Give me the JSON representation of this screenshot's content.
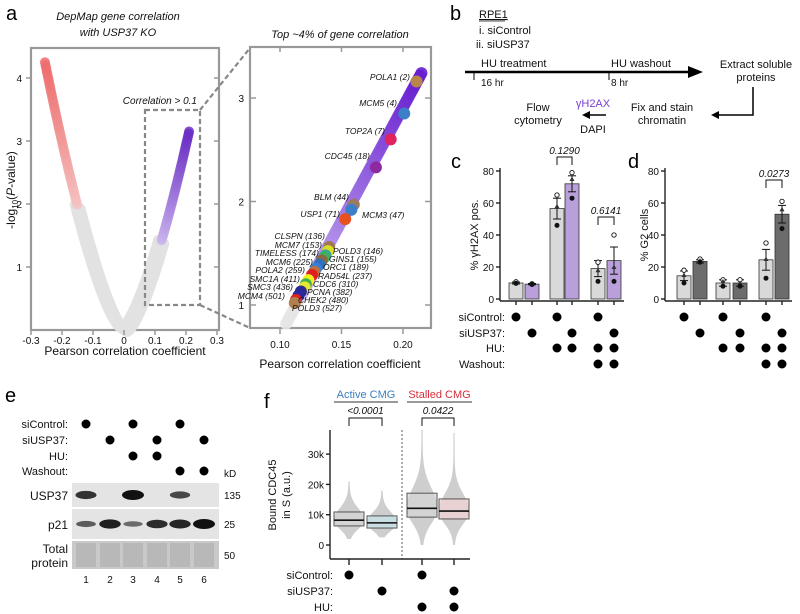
{
  "panel_letters": {
    "a": "a",
    "b": "b",
    "c": "c",
    "d": "d",
    "e": "e",
    "f": "f"
  },
  "colors": {
    "red": "#ee6d6d",
    "purple": "#6b2fc4",
    "gray": "#e2e2e2",
    "bar_light": "#d9d9d9",
    "bar_purple": "#b9a0da",
    "bar_dark": "#6c6c6c",
    "active": "#3d7fc0",
    "stalled": "#d52f3b",
    "dapi_purple": "#7a3fd0"
  },
  "chart_data": [
    {
      "id": "a-volcano",
      "type": "scatter",
      "title_line1": "DepMap gene correlation",
      "title_line2": "with USP37 KO",
      "xlabel": "Pearson correlation coefficient",
      "ylabel_pre": "-log",
      "ylabel_sub": "10",
      "ylabel_open": "(",
      "ylabel_p": "P",
      "ylabel_post": "-value)",
      "xlim": [
        -0.3,
        0.3
      ],
      "ylim": [
        0,
        4.5
      ],
      "xticks": [
        "-0.3",
        "-0.2",
        "-0.1",
        "0",
        "0.1",
        "0.2",
        "0.3"
      ],
      "xtick_values": [
        -0.3,
        -0.2,
        -0.1,
        0,
        0.1,
        0.2,
        0.3
      ],
      "yticks": [
        "1",
        "2",
        "3",
        "4"
      ],
      "ytick_values": [
        1,
        2,
        3,
        4
      ],
      "annotation": "Correlation > 0.1",
      "left_branch": {
        "x_extreme": -0.255,
        "y_max": 4.25,
        "color_threshold": -0.15
      },
      "right_branch": {
        "x_extreme": 0.21,
        "y_max": 3.15,
        "color_threshold": 0.12
      }
    },
    {
      "id": "a-zoom",
      "type": "scatter",
      "title": "Top ~4% of gene correlation",
      "xlabel": "Pearson correlation coefficient",
      "xlim": [
        0.08,
        0.22
      ],
      "ylim": [
        0.8,
        3.5
      ],
      "xticks": [
        "0.10",
        "0.15",
        "0.20"
      ],
      "xtick_values": [
        0.1,
        0.15,
        0.2
      ],
      "yticks": [
        "1",
        "2",
        "3"
      ],
      "ytick_values": [
        1,
        2,
        3
      ],
      "genes": [
        {
          "label": "POLA1 (2)",
          "x": 0.211,
          "y": 3.16,
          "color": "#b8864b"
        },
        {
          "label": "MCM5 (4)",
          "x": 0.201,
          "y": 2.85,
          "color": "#3a7fc8"
        },
        {
          "label": "TOP2A (7)",
          "x": 0.19,
          "y": 2.6,
          "color": "#e0245e"
        },
        {
          "label": "CDC45 (18)",
          "x": 0.178,
          "y": 2.33,
          "color": "#8e2aa0"
        },
        {
          "label": "BLM (44)",
          "x": 0.16,
          "y": 1.97,
          "color": "#9b7b60"
        },
        {
          "label": "MCM3 (47)",
          "x": 0.158,
          "y": 1.92,
          "color": "#3a7fc8"
        },
        {
          "label": "USP1 (71)",
          "x": 0.153,
          "y": 1.83,
          "color": "#e8501e"
        },
        {
          "label": "CLSPN (136)",
          "x": 0.14,
          "y": 1.56,
          "color": "#a07850"
        },
        {
          "label": "POLD3 (146)",
          "x": 0.139,
          "y": 1.52,
          "color": "#d8e020"
        },
        {
          "label": "MCM7 (153)",
          "x": 0.137,
          "y": 1.48,
          "color": "#3aa0a0"
        },
        {
          "label": "GINS1 (155)",
          "x": 0.136,
          "y": 1.46,
          "color": "#40b060"
        },
        {
          "label": "TIMELESS (174)",
          "x": 0.134,
          "y": 1.43,
          "color": "#8a6a40"
        },
        {
          "label": "ORC1 (189)",
          "x": 0.132,
          "y": 1.39,
          "color": "#3070c0"
        },
        {
          "label": "MCM6 (225)",
          "x": 0.129,
          "y": 1.35,
          "color": "#3a80d0"
        },
        {
          "label": "RAD54L (237)",
          "x": 0.128,
          "y": 1.32,
          "color": "#c07040"
        },
        {
          "label": "POLA2 (259)",
          "x": 0.126,
          "y": 1.29,
          "color": "#e02020"
        },
        {
          "label": "CDC6 (310)",
          "x": 0.123,
          "y": 1.24,
          "color": "#f0f020"
        },
        {
          "label": "PCNA (382)",
          "x": 0.121,
          "y": 1.2,
          "color": "#40b050"
        },
        {
          "label": "SMC1A (411)",
          "x": 0.12,
          "y": 1.17,
          "color": "#e8e830"
        },
        {
          "label": "SMC3 (436)",
          "x": 0.117,
          "y": 1.13,
          "color": "#2a2a90"
        },
        {
          "label": "CHEK2 (480)",
          "x": 0.115,
          "y": 1.09,
          "color": "#2a2aa0"
        },
        {
          "label": "MCM4 (501)",
          "x": 0.113,
          "y": 1.05,
          "color": "#e02020"
        },
        {
          "label": "POLD3 (527)",
          "x": 0.112,
          "y": 1.02,
          "color": "#b08050"
        }
      ]
    },
    {
      "id": "c",
      "type": "bar",
      "ylabel": "% γH2AX pos.",
      "ylim": [
        0,
        80
      ],
      "yticks": [
        "0",
        "20",
        "40",
        "60",
        "80"
      ],
      "ytick_values": [
        0,
        20,
        40,
        60,
        80
      ],
      "values": [
        10,
        9.3,
        56.5,
        72,
        19,
        24
      ],
      "errors": [
        0.6,
        0.4,
        6.5,
        5,
        5,
        8.5
      ],
      "replicates": [
        [
          10.8,
          10.2,
          9.8
        ],
        [
          9.5,
          9.3,
          9.1
        ],
        [
          65,
          58,
          46
        ],
        [
          79,
          75,
          63
        ],
        [
          23,
          18,
          11
        ],
        [
          40,
          20,
          11
        ]
      ],
      "bar_colors": [
        "#d9d9d9",
        "#b9a0da",
        "#d9d9d9",
        "#b9a0da",
        "#d9d9d9",
        "#b9a0da"
      ],
      "comparisons": [
        {
          "bars": [
            2,
            3
          ],
          "p": "0.1290"
        },
        {
          "bars": [
            4,
            5
          ],
          "p": "0.6141"
        }
      ]
    },
    {
      "id": "d",
      "type": "bar",
      "ylabel": "% G2 cells",
      "ylim": [
        0,
        80
      ],
      "yticks": [
        "0",
        "20",
        "40",
        "60",
        "80"
      ],
      "ytick_values": [
        0,
        20,
        40,
        60,
        80
      ],
      "values": [
        14.5,
        23.5,
        10,
        10,
        24.5,
        53
      ],
      "errors": [
        3,
        1,
        2,
        2,
        6.5,
        5.5
      ],
      "replicates": [
        [
          18,
          15,
          10
        ],
        [
          25,
          24,
          23
        ],
        [
          12,
          11,
          8
        ],
        [
          12,
          10,
          8
        ],
        [
          35,
          25,
          13
        ],
        [
          61,
          56,
          44
        ]
      ],
      "bar_colors": [
        "#d9d9d9",
        "#6c6c6c",
        "#d9d9d9",
        "#6c6c6c",
        "#d9d9d9",
        "#6c6c6c"
      ],
      "comparisons": [
        {
          "bars": [
            4,
            5
          ],
          "p": "0.0273"
        }
      ]
    },
    {
      "id": "f",
      "type": "box",
      "ylabel_line1": "Bound CDC45",
      "ylabel_line2": "in S (a.u.)",
      "yticks": [
        "0",
        "10k",
        "20k",
        "30k"
      ],
      "ytick_values": [
        0,
        10000,
        20000,
        30000
      ],
      "groups": [
        {
          "header": "Active CMG",
          "p": "<0.0001",
          "boxes": [
            0,
            1
          ]
        },
        {
          "header": "Stalled CMG",
          "p": "0.0422",
          "boxes": [
            2,
            3
          ]
        }
      ],
      "boxes": [
        {
          "q1": 6300,
          "median": 8200,
          "q3": 10900,
          "min": 2000,
          "max": 21000,
          "fill": "#d6d6d6"
        },
        {
          "q1": 5600,
          "median": 7300,
          "q3": 9600,
          "min": 2500,
          "max": 18000,
          "fill": "#c4e6ee"
        },
        {
          "q1": 9200,
          "median": 12100,
          "q3": 17100,
          "min": 0,
          "max": 38000,
          "fill": "#d6d6d6"
        },
        {
          "q1": 8600,
          "median": 11200,
          "q3": 15200,
          "min": 0,
          "max": 37000,
          "fill": "#f6d2d4"
        }
      ],
      "condition_rows": [
        {
          "label": "siControl:",
          "on": [
            1,
            0,
            1,
            0
          ]
        },
        {
          "label": "siUSP37:",
          "on": [
            0,
            1,
            0,
            1
          ]
        },
        {
          "label": "HU:",
          "on": [
            0,
            0,
            1,
            1
          ]
        }
      ]
    }
  ],
  "panel_b": {
    "cell_line": "RPE1",
    "condition_1": "i. siControl",
    "condition_2": "ii. siUSP37",
    "step_hu": "HU treatment",
    "step_washout": "HU washout",
    "time_1": "16 hr",
    "time_2": "8 hr",
    "extract_line1": "Extract soluble",
    "extract_line2": "proteins",
    "fix_line1": "Fix and stain",
    "fix_line2": "chromatin",
    "stain_1": "γH2AX",
    "stain_2": "DAPI",
    "flow_line1": "Flow",
    "flow_line2": "cytometry"
  },
  "panel_cd": {
    "condition_rows": [
      {
        "label": "siControl:",
        "on": [
          1,
          0,
          1,
          0,
          1,
          0
        ]
      },
      {
        "label": "siUSP37:",
        "on": [
          0,
          1,
          0,
          1,
          0,
          1
        ]
      },
      {
        "label": "HU:",
        "on": [
          0,
          0,
          1,
          1,
          1,
          1
        ]
      },
      {
        "label": "Washout:",
        "on": [
          0,
          0,
          0,
          0,
          1,
          1
        ]
      }
    ]
  },
  "panel_e": {
    "condition_rows": [
      {
        "label": "siControl:",
        "on": [
          1,
          0,
          1,
          0,
          1,
          0
        ]
      },
      {
        "label": "siUSP37:",
        "on": [
          0,
          1,
          0,
          1,
          0,
          1
        ]
      },
      {
        "label": "HU:",
        "on": [
          0,
          0,
          1,
          1,
          0,
          0
        ]
      },
      {
        "label": "Washout:",
        "on": [
          0,
          0,
          0,
          0,
          1,
          1
        ]
      }
    ],
    "kd_label": "kD",
    "lanes": [
      "1",
      "2",
      "3",
      "4",
      "5",
      "6"
    ],
    "blots": [
      {
        "label_line1": "USP37",
        "label_line2": "",
        "kd": "135",
        "intensity": [
          0.75,
          0,
          1,
          0,
          0.6,
          0
        ]
      },
      {
        "label_line1": "p21",
        "label_line2": "",
        "kd": "25",
        "intensity": [
          0.45,
          0.9,
          0.35,
          0.8,
          0.85,
          1
        ]
      },
      {
        "label_line1": "Total",
        "label_line2": "protein",
        "kd": "50",
        "intensity": [
          0.15,
          0.15,
          0.15,
          0.15,
          0.15,
          0.15
        ]
      }
    ]
  }
}
